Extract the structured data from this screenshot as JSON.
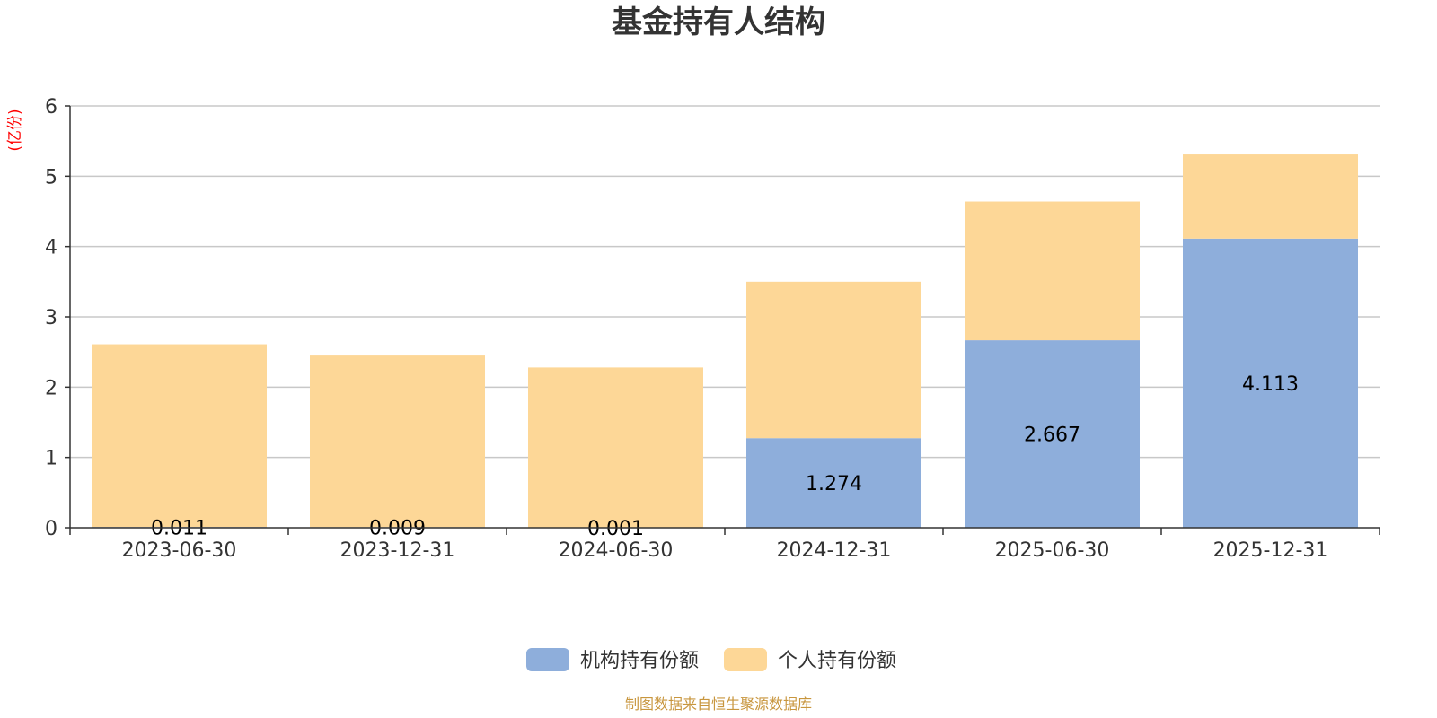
{
  "chart_data": {
    "type": "bar",
    "stacked": true,
    "title": "基金持有人结构",
    "unit": "(亿份)",
    "categories": [
      "2023-06-30",
      "2023-12-31",
      "2024-06-30",
      "2024-12-31",
      "2025-06-30",
      "2025-12-31"
    ],
    "series": [
      {
        "name": "机构持有份额",
        "color": "#8eaedb",
        "values": [
          0.011,
          0.009,
          0.001,
          1.274,
          2.667,
          4.113
        ],
        "labels": [
          "0.011",
          "0.009",
          "0.001",
          "1.274",
          "2.667",
          "4.113"
        ]
      },
      {
        "name": "个人持有份额",
        "color": "#fdd797",
        "values": [
          2.599,
          2.441,
          2.279,
          2.226,
          1.973,
          1.197
        ]
      }
    ],
    "ylim": [
      0,
      6
    ],
    "yticks": [
      "0",
      "1",
      "2",
      "3",
      "4",
      "5",
      "6"
    ],
    "grid": true,
    "legend_position": "bottom-center",
    "source": "制图数据来自恒生聚源数据库"
  }
}
